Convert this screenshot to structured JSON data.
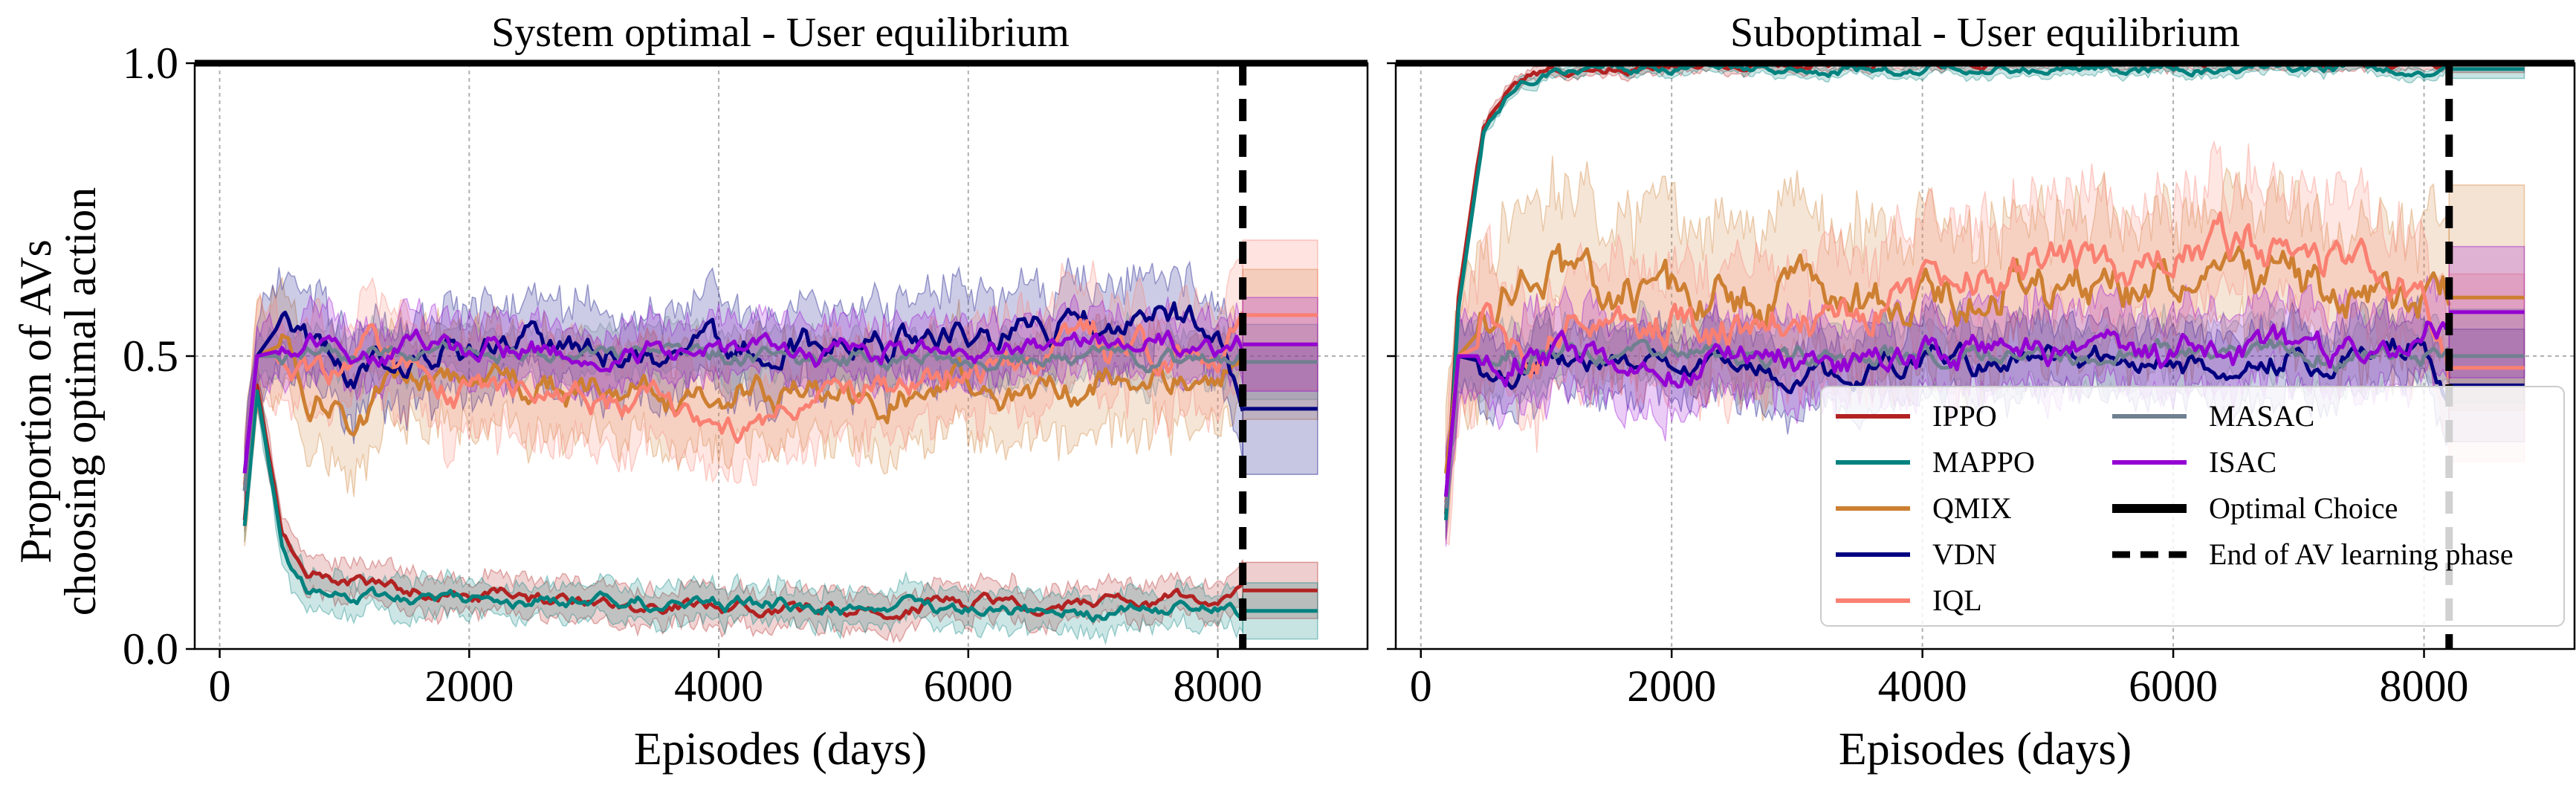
{
  "figure": {
    "ylabel_line1": "Proportion of AVs",
    "ylabel_line2": "choosing optimal action"
  },
  "legend": [
    {
      "label": "IPPO",
      "color": "#b22222",
      "style": "solid"
    },
    {
      "label": "MAPPO",
      "color": "#00827f",
      "style": "solid"
    },
    {
      "label": "QMIX",
      "color": "#cd7f32",
      "style": "solid"
    },
    {
      "label": "VDN",
      "color": "#000080",
      "style": "solid"
    },
    {
      "label": "IQL",
      "color": "#fa8072",
      "style": "solid"
    },
    {
      "label": "MASAC",
      "color": "#708090",
      "style": "solid"
    },
    {
      "label": "ISAC",
      "color": "#9400d3",
      "style": "solid"
    },
    {
      "label": "Optimal Choice",
      "color": "#000000",
      "style": "thick"
    },
    {
      "label": "End of AV learning phase",
      "color": "#000000",
      "style": "dashed"
    }
  ],
  "chart_data": [
    {
      "type": "line",
      "title": "System optimal - User equilibrium",
      "xlabel": "Episodes (days)",
      "ylabel": "Proportion of AVs choosing optimal action",
      "xlim": [
        -200,
        9200
      ],
      "ylim": [
        0,
        1
      ],
      "xticks": [
        0,
        2000,
        4000,
        6000,
        8000
      ],
      "yticks": [
        0.0,
        0.5,
        1.0
      ],
      "ytick_labels": [
        "0.0",
        "0.5",
        "1.0"
      ],
      "optimal_choice": 1.0,
      "learning_phase_end": 8200,
      "series": [
        {
          "name": "IPPO",
          "color": "#b22222",
          "x": [
            200,
            300,
            500,
            700,
            1000,
            1500,
            2000,
            3000,
            4000,
            5000,
            6000,
            7000,
            8000,
            8200
          ],
          "y": [
            0.22,
            0.45,
            0.2,
            0.13,
            0.12,
            0.1,
            0.09,
            0.08,
            0.07,
            0.07,
            0.08,
            0.08,
            0.09,
            0.1
          ],
          "band": 0.03,
          "post": 0.1
        },
        {
          "name": "MAPPO",
          "color": "#00827f",
          "x": [
            200,
            300,
            500,
            700,
            1000,
            1500,
            2000,
            3000,
            4000,
            5000,
            6000,
            7000,
            8000,
            8200
          ],
          "y": [
            0.21,
            0.44,
            0.18,
            0.11,
            0.1,
            0.08,
            0.08,
            0.08,
            0.08,
            0.07,
            0.07,
            0.06,
            0.08,
            0.065
          ],
          "band": 0.03,
          "post": 0.065
        },
        {
          "name": "QMIX",
          "color": "#cd7f32",
          "x": [
            200,
            300,
            500,
            700,
            1000,
            1500,
            2000,
            3000,
            4000,
            5000,
            6000,
            7000,
            8000,
            8200
          ],
          "y": [
            0.27,
            0.5,
            0.52,
            0.45,
            0.39,
            0.44,
            0.45,
            0.44,
            0.44,
            0.44,
            0.44,
            0.45,
            0.45,
            0.52
          ],
          "band": 0.08,
          "post": 0.52
        },
        {
          "name": "VDN",
          "color": "#000080",
          "x": [
            200,
            300,
            500,
            700,
            1000,
            1500,
            2000,
            3000,
            4000,
            5000,
            6000,
            7000,
            8000,
            8200
          ],
          "y": [
            0.3,
            0.5,
            0.56,
            0.52,
            0.49,
            0.5,
            0.52,
            0.51,
            0.5,
            0.52,
            0.53,
            0.56,
            0.55,
            0.41
          ],
          "band": 0.07,
          "post": 0.41
        },
        {
          "name": "IQL",
          "color": "#fa8072",
          "x": [
            200,
            300,
            500,
            700,
            1000,
            1500,
            2000,
            3000,
            4000,
            5000,
            6000,
            7000,
            8000,
            8200
          ],
          "y": [
            0.28,
            0.5,
            0.5,
            0.49,
            0.5,
            0.48,
            0.44,
            0.43,
            0.37,
            0.46,
            0.47,
            0.52,
            0.48,
            0.57
          ],
          "band": 0.08,
          "post": 0.57
        },
        {
          "name": "MASAC",
          "color": "#708090",
          "x": [
            200,
            300,
            500,
            700,
            1000,
            1500,
            2000,
            3000,
            4000,
            5000,
            6000,
            7000,
            8000,
            8200
          ],
          "y": [
            0.27,
            0.5,
            0.5,
            0.51,
            0.5,
            0.51,
            0.5,
            0.5,
            0.5,
            0.5,
            0.49,
            0.5,
            0.49,
            0.49
          ],
          "band": 0.04,
          "post": 0.49
        },
        {
          "name": "ISAC",
          "color": "#9400d3",
          "x": [
            200,
            300,
            500,
            700,
            1000,
            1500,
            2000,
            3000,
            4000,
            5000,
            6000,
            7000,
            8000,
            8200
          ],
          "y": [
            0.3,
            0.5,
            0.51,
            0.52,
            0.5,
            0.51,
            0.51,
            0.51,
            0.5,
            0.51,
            0.5,
            0.53,
            0.52,
            0.52
          ],
          "band": 0.05,
          "post": 0.52
        }
      ]
    },
    {
      "type": "line",
      "title": "Suboptimal - User equilibrium",
      "xlabel": "Episodes (days)",
      "ylabel": "",
      "xlim": [
        -200,
        9200
      ],
      "ylim": [
        0,
        1
      ],
      "xticks": [
        0,
        2000,
        4000,
        6000,
        8000
      ],
      "yticks": [
        0.0,
        0.5,
        1.0
      ],
      "ytick_labels": [
        "",
        "",
        ""
      ],
      "optimal_choice": 1.0,
      "learning_phase_end": 8200,
      "series": [
        {
          "name": "IPPO",
          "color": "#b22222",
          "x": [
            200,
            300,
            500,
            700,
            1000,
            1500,
            2000,
            3000,
            4000,
            5000,
            6000,
            7000,
            8000,
            8200
          ],
          "y": [
            0.23,
            0.6,
            0.9,
            0.96,
            0.99,
            0.99,
            1.0,
            1.0,
            1.0,
            1.0,
            1.0,
            1.0,
            1.0,
            1.0
          ],
          "band": 0.01,
          "post": 1.0
        },
        {
          "name": "MAPPO",
          "color": "#00827f",
          "x": [
            200,
            300,
            500,
            700,
            1000,
            1500,
            2000,
            3000,
            4000,
            5000,
            6000,
            7000,
            8000,
            8200
          ],
          "y": [
            0.22,
            0.58,
            0.88,
            0.95,
            0.98,
            0.99,
            0.99,
            0.99,
            0.99,
            0.99,
            0.99,
            0.99,
            0.99,
            0.99
          ],
          "band": 0.01,
          "post": 0.99
        },
        {
          "name": "QMIX",
          "color": "#cd7f32",
          "x": [
            200,
            300,
            500,
            700,
            1000,
            1500,
            2000,
            3000,
            4000,
            5000,
            6000,
            7000,
            8000,
            8200
          ],
          "y": [
            0.3,
            0.5,
            0.55,
            0.6,
            0.64,
            0.6,
            0.6,
            0.6,
            0.61,
            0.62,
            0.63,
            0.62,
            0.6,
            0.6
          ],
          "band": 0.12,
          "post": 0.6
        },
        {
          "name": "VDN",
          "color": "#000080",
          "x": [
            200,
            300,
            500,
            700,
            1000,
            1500,
            2000,
            3000,
            4000,
            5000,
            6000,
            7000,
            8000,
            8200
          ],
          "y": [
            0.26,
            0.5,
            0.49,
            0.48,
            0.5,
            0.49,
            0.49,
            0.47,
            0.49,
            0.5,
            0.49,
            0.5,
            0.53,
            0.45
          ],
          "band": 0.06,
          "post": 0.45
        },
        {
          "name": "IQL",
          "color": "#fa8072",
          "x": [
            200,
            300,
            500,
            700,
            1000,
            1500,
            2000,
            3000,
            4000,
            5000,
            6000,
            7000,
            8000,
            8200
          ],
          "y": [
            0.25,
            0.5,
            0.52,
            0.53,
            0.55,
            0.53,
            0.55,
            0.56,
            0.6,
            0.66,
            0.66,
            0.7,
            0.6,
            0.48
          ],
          "band": 0.1,
          "post": 0.48
        },
        {
          "name": "MASAC",
          "color": "#708090",
          "x": [
            200,
            300,
            500,
            700,
            1000,
            1500,
            2000,
            3000,
            4000,
            5000,
            6000,
            7000,
            8000,
            8200
          ],
          "y": [
            0.24,
            0.5,
            0.5,
            0.5,
            0.5,
            0.5,
            0.5,
            0.5,
            0.5,
            0.5,
            0.5,
            0.5,
            0.5,
            0.5
          ],
          "band": 0.05,
          "post": 0.5
        },
        {
          "name": "ISAC",
          "color": "#9400d3",
          "x": [
            200,
            300,
            500,
            700,
            1000,
            1500,
            2000,
            3000,
            4000,
            5000,
            6000,
            7000,
            8000,
            8200
          ],
          "y": [
            0.26,
            0.5,
            0.5,
            0.49,
            0.5,
            0.5,
            0.49,
            0.49,
            0.5,
            0.51,
            0.5,
            0.51,
            0.52,
            0.575
          ],
          "band": 0.07,
          "post": 0.575
        }
      ]
    }
  ]
}
